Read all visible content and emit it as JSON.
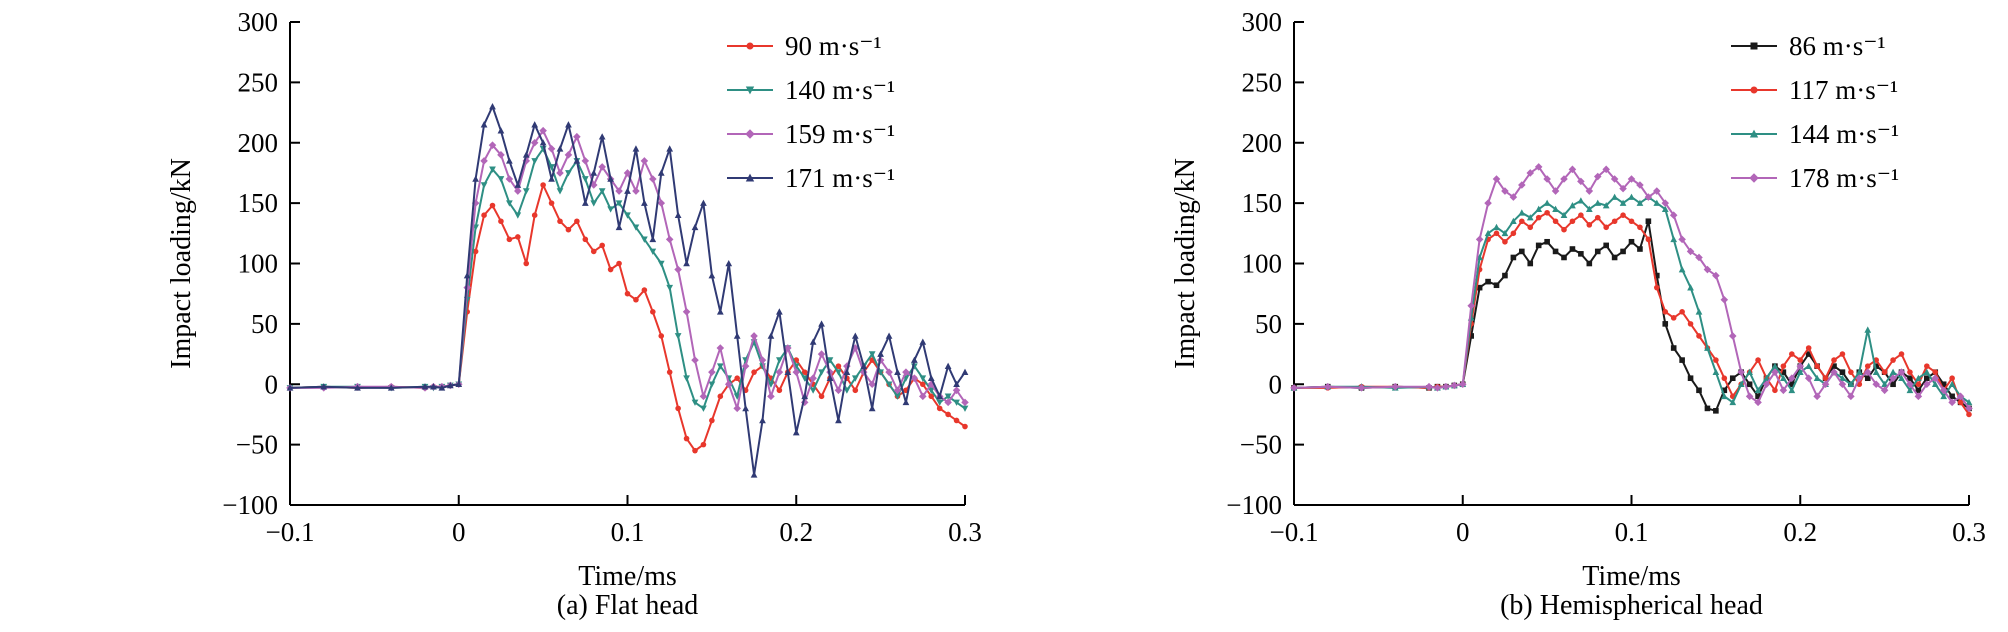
{
  "page_background": "#ffffff",
  "chart_data": [
    {
      "type": "line",
      "caption": "(a) Flat head",
      "xlabel": "Time/ms",
      "ylabel": "Impact loading/kN",
      "xlim": [
        -0.1,
        0.3
      ],
      "ylim": [
        -100,
        300
      ],
      "xticks": [
        -0.1,
        0,
        0.1,
        0.2,
        0.3
      ],
      "yticks": [
        -100,
        -50,
        0,
        50,
        100,
        150,
        200,
        250,
        300
      ],
      "grid": false,
      "legend_position": "top-right",
      "x": [
        -0.1,
        -0.08,
        -0.06,
        -0.04,
        -0.02,
        -0.015,
        -0.01,
        -0.005,
        0,
        0.005,
        0.01,
        0.015,
        0.02,
        0.025,
        0.03,
        0.035,
        0.04,
        0.045,
        0.05,
        0.055,
        0.06,
        0.065,
        0.07,
        0.075,
        0.08,
        0.085,
        0.09,
        0.095,
        0.1,
        0.105,
        0.11,
        0.115,
        0.12,
        0.125,
        0.13,
        0.135,
        0.14,
        0.145,
        0.15,
        0.155,
        0.16,
        0.165,
        0.17,
        0.175,
        0.18,
        0.185,
        0.19,
        0.195,
        0.2,
        0.205,
        0.21,
        0.215,
        0.22,
        0.225,
        0.23,
        0.235,
        0.24,
        0.245,
        0.25,
        0.255,
        0.26,
        0.265,
        0.27,
        0.275,
        0.28,
        0.285,
        0.29,
        0.295,
        0.3
      ],
      "series": [
        {
          "name": "90 m·s⁻¹",
          "color": "#e8372c",
          "marker": "circle",
          "y": [
            -3,
            -2,
            -3,
            -2,
            -3,
            -2,
            -2,
            -1,
            0,
            60,
            110,
            140,
            148,
            135,
            120,
            122,
            100,
            140,
            165,
            150,
            135,
            128,
            135,
            120,
            110,
            115,
            95,
            100,
            75,
            70,
            78,
            60,
            40,
            10,
            -20,
            -45,
            -55,
            -50,
            -30,
            -10,
            0,
            5,
            -5,
            10,
            15,
            5,
            -5,
            10,
            20,
            10,
            0,
            -10,
            5,
            15,
            5,
            -5,
            10,
            20,
            10,
            0,
            -10,
            -5,
            5,
            0,
            -10,
            -20,
            -25,
            -30,
            -35
          ]
        },
        {
          "name": "140 m·s⁻¹",
          "color": "#2e8f84",
          "marker": "triangle-down",
          "y": [
            -3,
            -2,
            -2,
            -3,
            -2,
            -3,
            -2,
            -1,
            0,
            70,
            130,
            165,
            178,
            170,
            150,
            140,
            160,
            185,
            195,
            180,
            160,
            175,
            185,
            170,
            150,
            160,
            145,
            150,
            140,
            130,
            120,
            110,
            100,
            80,
            40,
            5,
            -15,
            -20,
            0,
            15,
            5,
            -10,
            20,
            35,
            15,
            0,
            20,
            30,
            15,
            5,
            -5,
            10,
            20,
            10,
            -5,
            5,
            15,
            25,
            10,
            0,
            -10,
            5,
            15,
            5,
            -5,
            -15,
            -10,
            -15,
            -20
          ]
        },
        {
          "name": "159 m·s⁻¹",
          "color": "#b266b8",
          "marker": "diamond",
          "y": [
            -3,
            -3,
            -2,
            -2,
            -3,
            -2,
            -2,
            -1,
            0,
            80,
            150,
            185,
            198,
            190,
            170,
            160,
            185,
            200,
            210,
            195,
            175,
            190,
            205,
            185,
            165,
            180,
            170,
            160,
            175,
            160,
            185,
            170,
            150,
            120,
            95,
            60,
            20,
            -10,
            10,
            30,
            0,
            -20,
            15,
            40,
            20,
            -10,
            10,
            30,
            10,
            -15,
            5,
            25,
            10,
            -5,
            15,
            30,
            10,
            0,
            20,
            10,
            -5,
            10,
            5,
            -10,
            0,
            -10,
            -15,
            -5,
            -15
          ]
        },
        {
          "name": "171 m·s⁻¹",
          "color": "#303a74",
          "marker": "triangle-up",
          "y": [
            -3,
            -2,
            -3,
            -3,
            -2,
            -2,
            -3,
            -1,
            0,
            90,
            170,
            215,
            230,
            210,
            185,
            165,
            190,
            215,
            200,
            170,
            195,
            215,
            185,
            150,
            175,
            205,
            170,
            130,
            160,
            195,
            150,
            120,
            175,
            195,
            140,
            100,
            130,
            150,
            90,
            60,
            100,
            40,
            -20,
            -75,
            -30,
            40,
            60,
            10,
            -40,
            -10,
            35,
            50,
            5,
            -30,
            10,
            40,
            15,
            -20,
            25,
            40,
            10,
            -15,
            20,
            35,
            5,
            -10,
            15,
            0,
            10
          ]
        }
      ]
    },
    {
      "type": "line",
      "caption": "(b) Hemispherical head",
      "xlabel": "Time/ms",
      "ylabel": "Impact loading/kN",
      "xlim": [
        -0.1,
        0.3
      ],
      "ylim": [
        -100,
        300
      ],
      "xticks": [
        -0.1,
        0,
        0.1,
        0.2,
        0.3
      ],
      "yticks": [
        -100,
        -50,
        0,
        50,
        100,
        150,
        200,
        250,
        300
      ],
      "grid": false,
      "legend_position": "top-right",
      "x": [
        -0.1,
        -0.08,
        -0.06,
        -0.04,
        -0.02,
        -0.015,
        -0.01,
        -0.005,
        0,
        0.005,
        0.01,
        0.015,
        0.02,
        0.025,
        0.03,
        0.035,
        0.04,
        0.045,
        0.05,
        0.055,
        0.06,
        0.065,
        0.07,
        0.075,
        0.08,
        0.085,
        0.09,
        0.095,
        0.1,
        0.105,
        0.11,
        0.115,
        0.12,
        0.125,
        0.13,
        0.135,
        0.14,
        0.145,
        0.15,
        0.155,
        0.16,
        0.165,
        0.17,
        0.175,
        0.18,
        0.185,
        0.19,
        0.195,
        0.2,
        0.205,
        0.21,
        0.215,
        0.22,
        0.225,
        0.23,
        0.235,
        0.24,
        0.245,
        0.25,
        0.255,
        0.26,
        0.265,
        0.27,
        0.275,
        0.28,
        0.285,
        0.29,
        0.295,
        0.3
      ],
      "series": [
        {
          "name": "86 m·s⁻¹",
          "color": "#1a1a1a",
          "marker": "square",
          "y": [
            -3,
            -2,
            -3,
            -2,
            -3,
            -2,
            -2,
            -1,
            0,
            40,
            80,
            85,
            82,
            90,
            105,
            110,
            100,
            115,
            118,
            110,
            105,
            112,
            108,
            100,
            110,
            115,
            105,
            110,
            118,
            112,
            135,
            90,
            50,
            30,
            20,
            5,
            -5,
            -20,
            -22,
            -5,
            5,
            10,
            0,
            -10,
            5,
            15,
            10,
            0,
            15,
            25,
            15,
            5,
            15,
            10,
            0,
            10,
            5,
            15,
            10,
            0,
            10,
            5,
            -5,
            5,
            10,
            0,
            -10,
            -15,
            -20
          ]
        },
        {
          "name": "117 m·s⁻¹",
          "color": "#e8372c",
          "marker": "circle",
          "y": [
            -3,
            -3,
            -2,
            -2,
            -3,
            -2,
            -2,
            -1,
            0,
            50,
            95,
            120,
            125,
            118,
            125,
            135,
            130,
            138,
            142,
            135,
            128,
            135,
            140,
            132,
            138,
            130,
            135,
            140,
            135,
            130,
            120,
            80,
            60,
            55,
            60,
            50,
            40,
            30,
            20,
            5,
            -10,
            0,
            10,
            20,
            5,
            -5,
            15,
            25,
            20,
            30,
            15,
            5,
            20,
            25,
            10,
            0,
            15,
            20,
            10,
            20,
            25,
            10,
            0,
            15,
            10,
            -5,
            5,
            -15,
            -25
          ]
        },
        {
          "name": "144 m·s⁻¹",
          "color": "#2e8f84",
          "marker": "triangle-up",
          "y": [
            -3,
            -2,
            -2,
            -3,
            -2,
            -3,
            -2,
            -1,
            0,
            55,
            105,
            125,
            130,
            125,
            135,
            142,
            138,
            145,
            150,
            145,
            140,
            148,
            152,
            145,
            150,
            148,
            155,
            150,
            155,
            150,
            155,
            150,
            145,
            120,
            95,
            80,
            60,
            30,
            10,
            -10,
            -15,
            0,
            10,
            -5,
            5,
            15,
            5,
            -5,
            10,
            15,
            5,
            0,
            10,
            5,
            0,
            10,
            45,
            10,
            0,
            10,
            5,
            -5,
            5,
            10,
            0,
            -10,
            0,
            -10,
            -15
          ]
        },
        {
          "name": "178 m·s⁻¹",
          "color": "#b266b8",
          "marker": "diamond",
          "y": [
            -3,
            -2,
            -3,
            -2,
            -2,
            -3,
            -2,
            -1,
            0,
            65,
            120,
            150,
            170,
            160,
            155,
            165,
            175,
            180,
            170,
            160,
            170,
            178,
            168,
            160,
            172,
            178,
            170,
            162,
            170,
            165,
            155,
            160,
            150,
            140,
            120,
            110,
            105,
            95,
            90,
            70,
            40,
            10,
            -10,
            -15,
            0,
            10,
            -5,
            5,
            15,
            5,
            -10,
            0,
            10,
            0,
            -10,
            5,
            10,
            0,
            -5,
            5,
            10,
            0,
            -10,
            0,
            5,
            -5,
            -15,
            -10,
            -20
          ]
        }
      ]
    }
  ]
}
